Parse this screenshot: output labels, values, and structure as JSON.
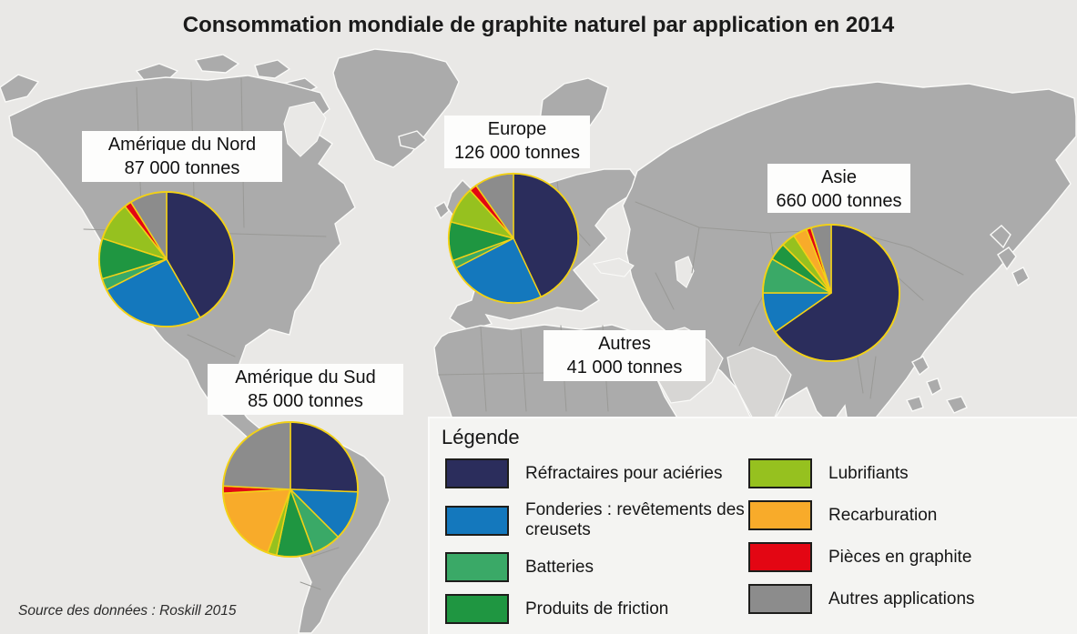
{
  "title": "Consommation mondiale de graphite naturel par application en 2014",
  "source": "Source des données : Roskill 2015",
  "legend": {
    "title": "Légende",
    "items": [
      {
        "key": "refractaires",
        "label": "Réfractaires pour aciéries",
        "color": "#2b2d5c",
        "column": 1
      },
      {
        "key": "fonderies",
        "label": "Fonderies : revêtements des creusets",
        "color": "#1478bd",
        "column": 1
      },
      {
        "key": "batteries",
        "label": "Batteries",
        "color": "#3aa967",
        "column": 1
      },
      {
        "key": "friction",
        "label": "Produits de friction",
        "color": "#1f9641",
        "column": 1
      },
      {
        "key": "lubrifiants",
        "label": "Lubrifiants",
        "color": "#96c11f",
        "column": 2
      },
      {
        "key": "recarburation",
        "label": "Recarburation",
        "color": "#f8ab2a",
        "column": 2
      },
      {
        "key": "pieces",
        "label": "Pièces en graphite",
        "color": "#e30613",
        "column": 2
      },
      {
        "key": "autres",
        "label": "Autres applications",
        "color": "#8c8c8c",
        "column": 2
      }
    ]
  },
  "regions": {
    "north_america": {
      "name": "Amérique du Nord",
      "tonnage": "87 000 tonnes"
    },
    "europe": {
      "name": "Europe",
      "tonnage": "126 000 tonnes"
    },
    "asia": {
      "name": "Asie",
      "tonnage": "660 000 tonnes"
    },
    "south_america": {
      "name": "Amérique du Sud",
      "tonnage": "85 000 tonnes"
    },
    "others": {
      "name": "Autres",
      "tonnage": "41 000 tonnes"
    }
  },
  "pie_style": {
    "outline_color": "#f2d117"
  },
  "chart_data": [
    {
      "type": "pie",
      "region": "north_america",
      "title": "Amérique du Nord",
      "total_tonnes": 87000,
      "unit": "tonnes",
      "slices": [
        {
          "key": "refractaires",
          "label": "Réfractaires pour aciéries",
          "percent": 41.7
        },
        {
          "key": "fonderies",
          "label": "Fonderies : revêtements des creusets",
          "percent": 25.8
        },
        {
          "key": "batteries",
          "label": "Batteries",
          "percent": 2.8
        },
        {
          "key": "friction",
          "label": "Produits de friction",
          "percent": 9.7
        },
        {
          "key": "lubrifiants",
          "label": "Lubrifiants",
          "percent": 9.4
        },
        {
          "key": "pieces",
          "label": "Pièces en graphite",
          "percent": 1.7
        },
        {
          "key": "autres",
          "label": "Autres applications",
          "percent": 8.9
        }
      ]
    },
    {
      "type": "pie",
      "region": "europe",
      "title": "Europe",
      "total_tonnes": 126000,
      "unit": "tonnes",
      "slices": [
        {
          "key": "refractaires",
          "label": "Réfractaires pour aciéries",
          "percent": 43.0
        },
        {
          "key": "fonderies",
          "label": "Fonderies : revêtements des creusets",
          "percent": 24.4
        },
        {
          "key": "batteries",
          "label": "Batteries",
          "percent": 2.0
        },
        {
          "key": "friction",
          "label": "Produits de friction",
          "percent": 9.7
        },
        {
          "key": "lubrifiants",
          "label": "Lubrifiants",
          "percent": 9.2
        },
        {
          "key": "pieces",
          "label": "Pièces en graphite",
          "percent": 1.9
        },
        {
          "key": "autres",
          "label": "Autres applications",
          "percent": 9.8
        }
      ]
    },
    {
      "type": "pie",
      "region": "asia",
      "title": "Asie",
      "total_tonnes": 660000,
      "unit": "tonnes",
      "slices": [
        {
          "key": "refractaires",
          "label": "Réfractaires pour aciéries",
          "percent": 65.3
        },
        {
          "key": "fonderies",
          "label": "Fonderies : revêtements des creusets",
          "percent": 9.7
        },
        {
          "key": "batteries",
          "label": "Batteries",
          "percent": 8.3
        },
        {
          "key": "friction",
          "label": "Produits de friction",
          "percent": 4.2
        },
        {
          "key": "lubrifiants",
          "label": "Lubrifiants",
          "percent": 3.3
        },
        {
          "key": "recarburation",
          "label": "Recarburation",
          "percent": 3.3
        },
        {
          "key": "pieces",
          "label": "Pièces en graphite",
          "percent": 1.1
        },
        {
          "key": "autres",
          "label": "Autres applications",
          "percent": 4.8
        }
      ]
    },
    {
      "type": "pie",
      "region": "south_america",
      "title": "Amérique du Sud",
      "total_tonnes": 85000,
      "unit": "tonnes",
      "slices": [
        {
          "key": "refractaires",
          "label": "Réfractaires pour aciéries",
          "percent": 25.6
        },
        {
          "key": "fonderies",
          "label": "Fonderies : revêtements des creusets",
          "percent": 11.9
        },
        {
          "key": "batteries",
          "label": "Batteries",
          "percent": 6.9
        },
        {
          "key": "friction",
          "label": "Produits de friction",
          "percent": 8.9
        },
        {
          "key": "lubrifiants",
          "label": "Lubrifiants",
          "percent": 2.2
        },
        {
          "key": "recarburation",
          "label": "Recarburation",
          "percent": 18.6
        },
        {
          "key": "pieces",
          "label": "Pièces en graphite",
          "percent": 1.7
        },
        {
          "key": "autres",
          "label": "Autres applications",
          "percent": 24.2
        }
      ]
    }
  ]
}
